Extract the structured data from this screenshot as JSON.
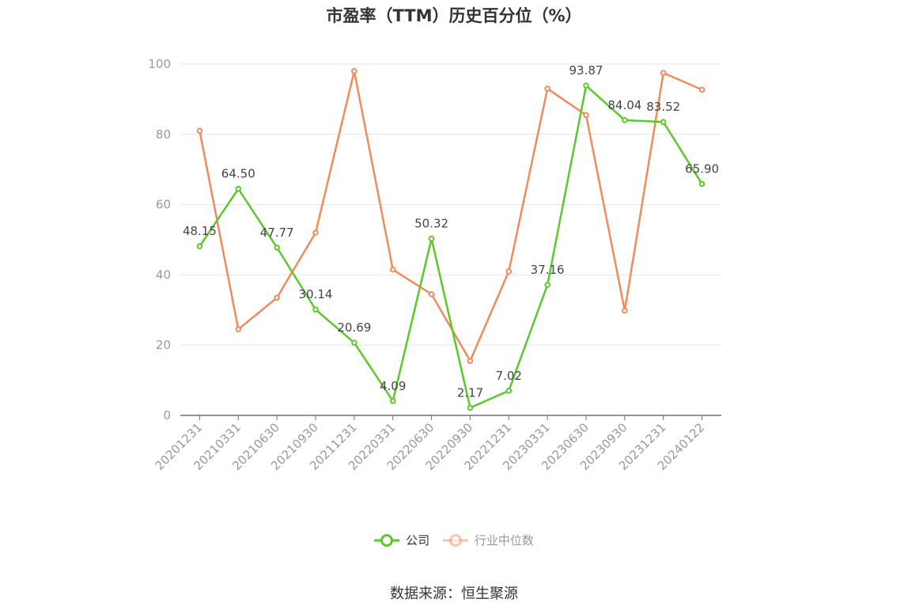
{
  "chart_data": {
    "type": "line",
    "title": "市盈率（TTM）历史百分位（%）",
    "categories": [
      "20201231",
      "20210331",
      "20210630",
      "20210930",
      "20211231",
      "20220331",
      "20220630",
      "20220930",
      "20221231",
      "20230331",
      "20230630",
      "20230930",
      "20231231",
      "20240122"
    ],
    "series": [
      {
        "name": "公司",
        "color": "#5cc92a",
        "values": [
          48.15,
          64.5,
          47.77,
          30.14,
          20.69,
          4.09,
          50.32,
          2.17,
          7.02,
          37.16,
          93.87,
          84.04,
          83.52,
          65.9
        ],
        "labels": [
          "48.15",
          "64.50",
          "47.77",
          "30.14",
          "20.69",
          "4.09",
          "50.32",
          "2.17",
          "7.02",
          "37.16",
          "93.87",
          "84.04",
          "83.52",
          "65.90"
        ]
      },
      {
        "name": "行业中位数",
        "color": "#f28b5c",
        "values": [
          81,
          24.5,
          33.5,
          52,
          98,
          41.5,
          34.5,
          15.5,
          41,
          93,
          85.5,
          29.8,
          97.5,
          92.7
        ]
      }
    ],
    "ylim": [
      0,
      100
    ],
    "yticks": [
      0,
      20,
      40,
      60,
      80,
      100
    ],
    "grid": true,
    "legend_position": "bottom"
  },
  "source_text": "数据来源：恒生聚源"
}
